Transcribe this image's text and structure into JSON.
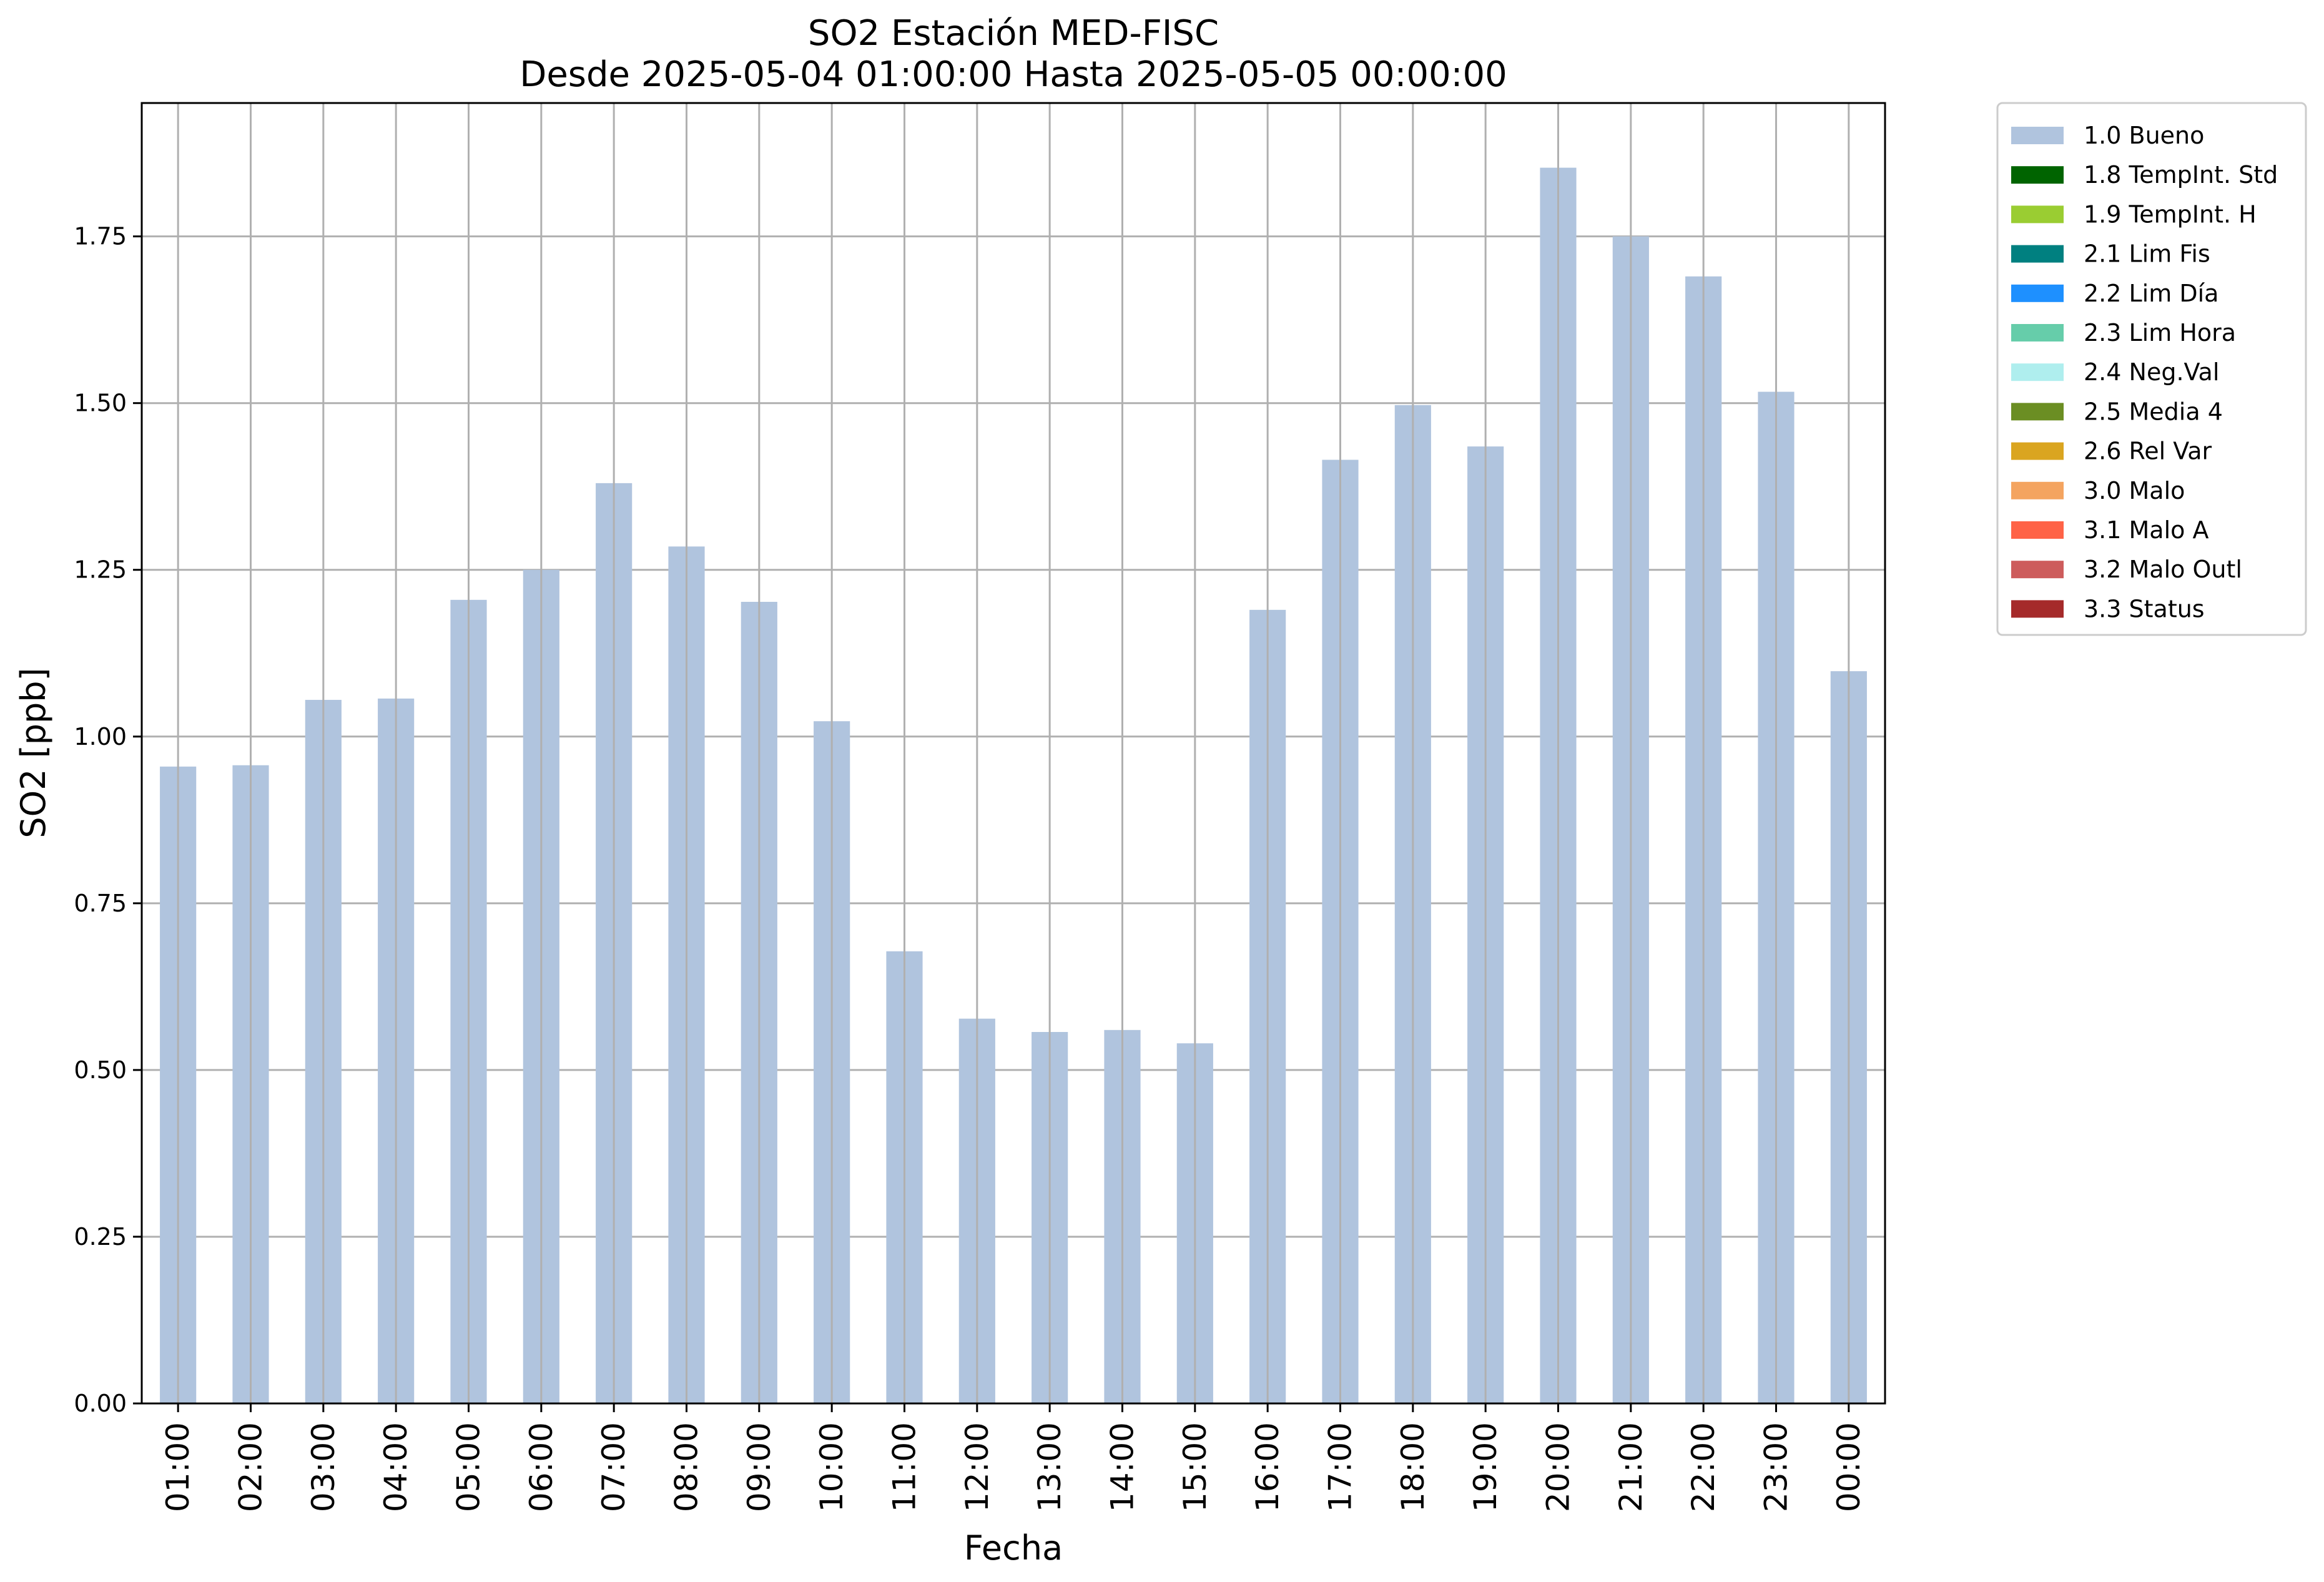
{
  "chart_data": {
    "type": "bar",
    "title": "SO2 Estación MED-FISC",
    "subtitle": "Desde 2025-05-04 01:00:00 Hasta 2025-05-05 00:00:00",
    "xlabel": "Fecha",
    "ylabel": "SO2 [ppb]",
    "ylim": [
      0,
      1.95
    ],
    "yticks": [
      "0.00",
      "0.25",
      "0.50",
      "0.75",
      "1.00",
      "1.25",
      "1.50",
      "1.75"
    ],
    "ytick_values": [
      0,
      0.25,
      0.5,
      0.75,
      1.0,
      1.25,
      1.5,
      1.75
    ],
    "grid": true,
    "legend_position": "outside-top-right",
    "categories": [
      "01:00",
      "02:00",
      "03:00",
      "04:00",
      "05:00",
      "06:00",
      "07:00",
      "08:00",
      "09:00",
      "10:00",
      "11:00",
      "12:00",
      "13:00",
      "14:00",
      "15:00",
      "16:00",
      "17:00",
      "18:00",
      "19:00",
      "20:00",
      "21:00",
      "22:00",
      "23:00",
      "00:00"
    ],
    "series": [
      {
        "name": "1.0 Bueno",
        "color": "#b0c4de",
        "values": [
          0.955,
          0.957,
          1.055,
          1.057,
          1.205,
          1.25,
          1.38,
          1.285,
          1.202,
          1.023,
          0.678,
          0.577,
          0.557,
          0.56,
          0.54,
          1.19,
          1.415,
          1.497,
          1.435,
          1.853,
          1.75,
          1.69,
          1.517,
          1.098
        ]
      }
    ],
    "legend": [
      {
        "label": "1.0 Bueno",
        "color": "#b0c4de"
      },
      {
        "label": "1.8 TempInt. Std",
        "color": "#006400"
      },
      {
        "label": "1.9 TempInt. H",
        "color": "#9acd32"
      },
      {
        "label": "2.1 Lim Fis",
        "color": "#008080"
      },
      {
        "label": "2.2 Lim Día",
        "color": "#1e90ff"
      },
      {
        "label": "2.3 Lim Hora",
        "color": "#66cdaa"
      },
      {
        "label": "2.4 Neg.Val",
        "color": "#afeeee"
      },
      {
        "label": "2.5 Media 4",
        "color": "#6b8e23"
      },
      {
        "label": "2.6 Rel Var",
        "color": "#daa520"
      },
      {
        "label": "3.0 Malo",
        "color": "#f4a460"
      },
      {
        "label": "3.1 Malo A",
        "color": "#ff6347"
      },
      {
        "label": "3.2 Malo Outl",
        "color": "#cd5c5c"
      },
      {
        "label": "3.3 Status",
        "color": "#a52a2a"
      }
    ]
  }
}
